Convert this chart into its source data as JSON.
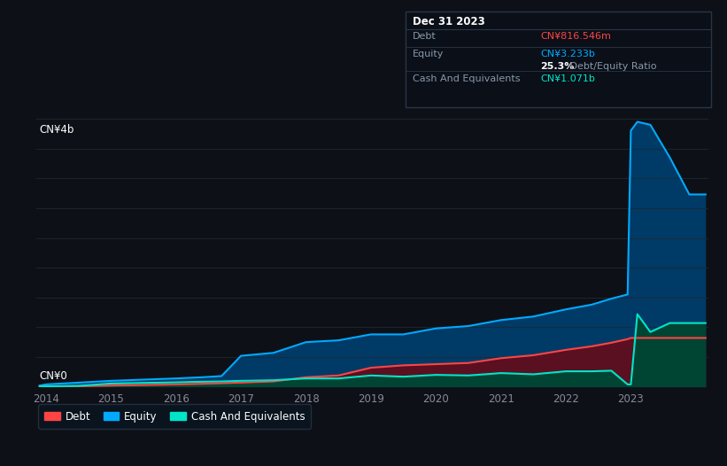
{
  "bg_color": "#0d1117",
  "plot_bg_color": "#0d1117",
  "grid_color": "#1e2835",
  "title_box": {
    "date": "Dec 31 2023",
    "debt_label": "Debt",
    "debt_value": "CN¥816.546m",
    "debt_color": "#ff4444",
    "equity_label": "Equity",
    "equity_value": "CN¥3.233b",
    "equity_color": "#00aaff",
    "ratio_bold": "25.3%",
    "ratio_text": " Debt/Equity Ratio",
    "cash_label": "Cash And Equivalents",
    "cash_value": "CN¥1.071b",
    "cash_color": "#00e5c8",
    "box_bg": "#0a0f18",
    "box_edge": "#2a3545",
    "label_color": "#8899aa",
    "white_color": "#ffffff"
  },
  "ylabel_top": "CN¥4b",
  "ylabel_zero": "CN¥0",
  "ylim": [
    0,
    4.5
  ],
  "years": [
    2013.9,
    2014.0,
    2014.5,
    2015.0,
    2015.5,
    2016.0,
    2016.4,
    2016.7,
    2017.0,
    2017.5,
    2018.0,
    2018.5,
    2019.0,
    2019.5,
    2020.0,
    2020.5,
    2021.0,
    2021.5,
    2022.0,
    2022.4,
    2022.7,
    2022.95,
    2023.0,
    2023.1,
    2023.3,
    2023.6,
    2023.9,
    2024.15
  ],
  "equity": [
    0.02,
    0.04,
    0.07,
    0.1,
    0.12,
    0.14,
    0.16,
    0.18,
    0.52,
    0.57,
    0.75,
    0.78,
    0.88,
    0.88,
    0.98,
    1.02,
    1.12,
    1.18,
    1.3,
    1.38,
    1.48,
    1.55,
    4.3,
    4.45,
    4.4,
    3.85,
    3.23,
    3.23
  ],
  "debt": [
    0.005,
    0.01,
    0.01,
    0.02,
    0.03,
    0.04,
    0.05,
    0.06,
    0.07,
    0.09,
    0.16,
    0.19,
    0.32,
    0.36,
    0.38,
    0.4,
    0.48,
    0.53,
    0.62,
    0.68,
    0.74,
    0.8,
    0.82,
    0.82,
    0.82,
    0.82,
    0.82,
    0.82
  ],
  "cash": [
    0.003,
    0.008,
    0.015,
    0.055,
    0.065,
    0.075,
    0.085,
    0.09,
    0.1,
    0.11,
    0.14,
    0.14,
    0.19,
    0.17,
    0.2,
    0.19,
    0.23,
    0.21,
    0.26,
    0.26,
    0.27,
    0.04,
    0.04,
    1.22,
    0.92,
    1.07,
    1.07,
    1.07
  ],
  "equity_color": "#00aaff",
  "debt_color": "#ff4444",
  "cash_color": "#00e5c8",
  "equity_fill_color": "#003a66",
  "debt_fill_color": "#5a1020",
  "cash_fill_color": "#004433",
  "xticks": [
    2014,
    2015,
    2016,
    2017,
    2018,
    2019,
    2020,
    2021,
    2022,
    2023
  ],
  "xtick_labels": [
    "2014",
    "2015",
    "2016",
    "2017",
    "2018",
    "2019",
    "2020",
    "2021",
    "2022",
    "2023"
  ],
  "legend_labels": [
    "Debt",
    "Equity",
    "Cash And Equivalents"
  ],
  "legend_colors": [
    "#ff4444",
    "#00aaff",
    "#00e5c8"
  ]
}
